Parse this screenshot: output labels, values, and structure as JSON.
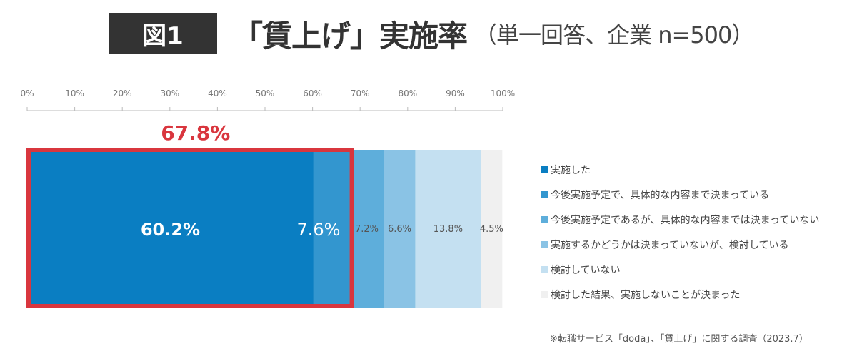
{
  "header": {
    "badge": "図1",
    "title": "「賃上げ」実施率",
    "subtitle": "（単一回答、企業 n=500）"
  },
  "chart_data": {
    "type": "bar",
    "orientation": "horizontal-stacked-100",
    "xlim": [
      0,
      100
    ],
    "ticks": [
      "0%",
      "10%",
      "20%",
      "30%",
      "40%",
      "50%",
      "60%",
      "70%",
      "80%",
      "90%",
      "100%"
    ],
    "series": [
      {
        "name": "実施した",
        "value": 60.2,
        "label": "60.2%",
        "color": "#0a7ec2"
      },
      {
        "name": "今後実施予定で、具体的な内容まで決まっている",
        "value": 7.6,
        "label": "7.6%",
        "color": "#3396cf"
      },
      {
        "name": "今後実施予定であるが、具体的な内容までは決まっていない",
        "value": 7.2,
        "label": "7.2%",
        "color": "#5eaedb"
      },
      {
        "name": "実施するかどうかは決まっていないが、検討している",
        "value": 6.6,
        "label": "6.6%",
        "color": "#8ac3e5"
      },
      {
        "name": "検討していない",
        "value": 13.8,
        "label": "13.8%",
        "color": "#c4e0f1"
      },
      {
        "name": "検討した結果、実施しないことが決まった",
        "value": 4.5,
        "label": "4.5%",
        "color": "#f0f0f0"
      }
    ],
    "highlight": {
      "label": "67.8%",
      "value": 67.8,
      "color": "#d9363e"
    },
    "legend_position": "right"
  },
  "source": "※転職サービス「doda」、「賃上げ」に関する調査（2023.7）"
}
